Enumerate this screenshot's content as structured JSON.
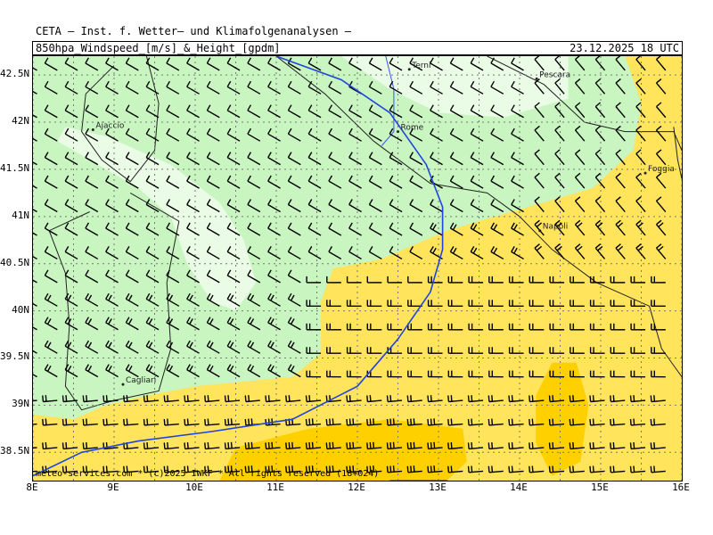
{
  "header": {
    "title": "CETA – Inst. f. Wetter– und Klimafolgenanalysen –",
    "subtitle": "850hpa_Windspeed_[m/s]_&_Height_[gpdm]",
    "timestamp": "23.12.2025 18 UTC"
  },
  "footer": {
    "credit": "meteo-services.com * (c)2025 IWKF * All rights reserved (18+024)"
  },
  "map": {
    "lon_range": [
      8,
      16
    ],
    "lat_range": [
      38.2,
      42.7
    ],
    "lat_ticks": [
      {
        "value": 42.5,
        "label": "42.5N"
      },
      {
        "value": 42,
        "label": "42N"
      },
      {
        "value": 41.5,
        "label": "41.5N"
      },
      {
        "value": 41,
        "label": "41N"
      },
      {
        "value": 40.5,
        "label": "40.5N"
      },
      {
        "value": 40,
        "label": "40N"
      },
      {
        "value": 39.5,
        "label": "39.5N"
      },
      {
        "value": 39,
        "label": "39N"
      },
      {
        "value": 38.5,
        "label": "38.5N"
      }
    ],
    "lon_ticks": [
      {
        "value": 8,
        "label": "8E"
      },
      {
        "value": 9,
        "label": "9E"
      },
      {
        "value": 10,
        "label": "10E"
      },
      {
        "value": 11,
        "label": "11E"
      },
      {
        "value": 12,
        "label": "12E"
      },
      {
        "value": 13,
        "label": "13E"
      },
      {
        "value": 14,
        "label": "14E"
      },
      {
        "value": 15,
        "label": "15E"
      },
      {
        "value": 16,
        "label": "16E"
      }
    ],
    "cities": [
      {
        "name": "Terni",
        "lon": 12.64,
        "lat": 42.56
      },
      {
        "name": "Pescara",
        "lon": 14.21,
        "lat": 42.46
      },
      {
        "name": "Ajaccio",
        "lon": 8.74,
        "lat": 41.92
      },
      {
        "name": "Rome",
        "lon": 12.5,
        "lat": 41.9
      },
      {
        "name": "Foggia",
        "lon": 15.55,
        "lat": 41.46
      },
      {
        "name": "Napoli",
        "lon": 14.25,
        "lat": 40.85
      },
      {
        "name": "Cagliari",
        "lon": 9.11,
        "lat": 39.22
      }
    ],
    "colors": {
      "light_green": "#c8f5c0",
      "very_light_green": "#eafbe6",
      "yellow": "#ffe45c",
      "gold": "#ffd000",
      "land": "#222222",
      "river": "#3355ff",
      "height_contour": "#2244dd",
      "grid": "#777777"
    }
  }
}
